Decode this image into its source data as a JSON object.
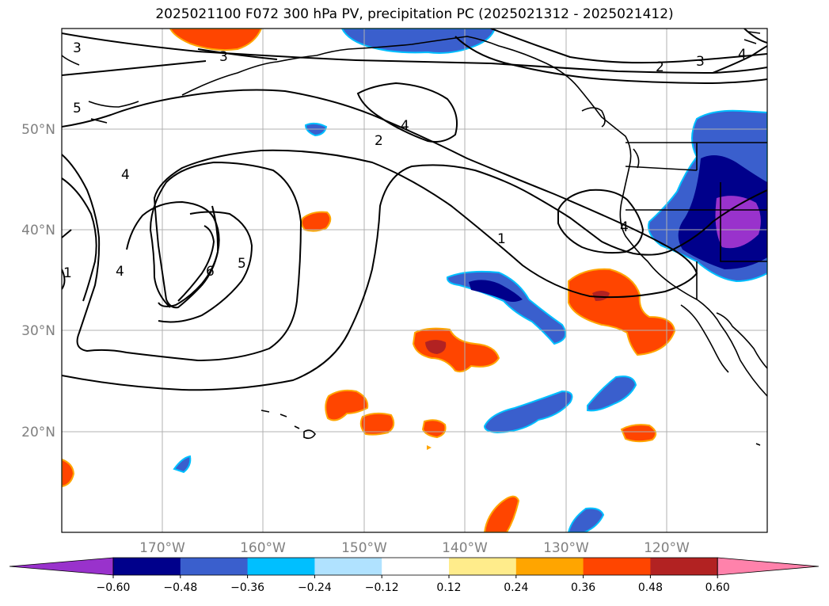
{
  "title": "2025021100 F072 300 hPa PV, precipitation PC (2025021312 - 2025021412)",
  "lat_labels": [
    "50°N",
    "40°N",
    "30°N",
    "20°N"
  ],
  "lon_labels": [
    "170°W",
    "160°W",
    "150°W",
    "140°W",
    "130°W",
    "120°W"
  ],
  "contour_labels": [
    "3",
    "3",
    "2",
    "3",
    "4",
    "5",
    "4",
    "2",
    "4",
    "1",
    "1",
    "4",
    "4",
    "6",
    "5"
  ],
  "colorbar": {
    "ticks": [
      "−0.60",
      "−0.48",
      "−0.36",
      "−0.24",
      "−0.12",
      "0.12",
      "0.24",
      "0.36",
      "0.48",
      "0.60"
    ],
    "colors": [
      "#9932CC",
      "#00008B",
      "#3A5FCD",
      "#00BFFF",
      "#B0E2FF",
      "#FFFFFF",
      "#FFEC8B",
      "#FFA500",
      "#FF4500",
      "#B22222",
      "#FF82AB"
    ]
  }
}
